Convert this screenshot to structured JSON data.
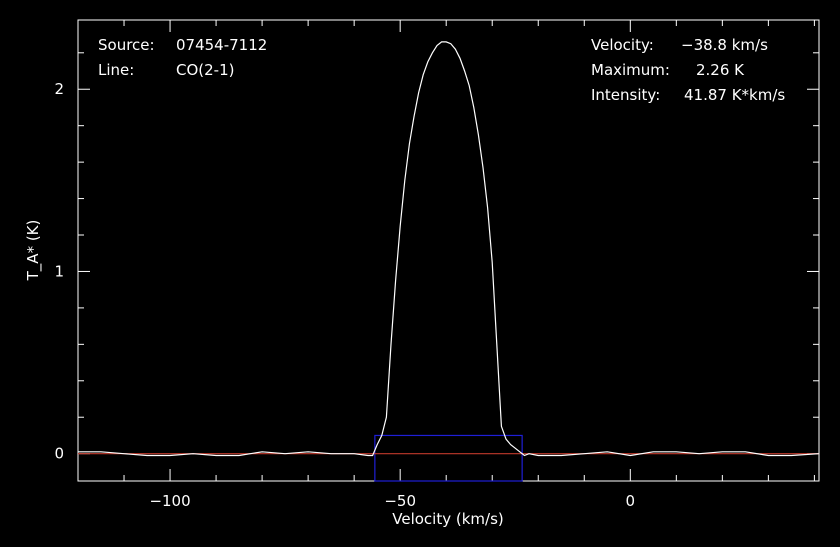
{
  "info": {
    "source_label": "Source:",
    "source_value": "07454-7112",
    "line_label": "Line:",
    "line_value": "CO(2-1)",
    "velocity_label": "Velocity:",
    "velocity_value": "−38.8 km/s",
    "maximum_label": "Maximum:",
    "maximum_value": "2.26 K",
    "intensity_label": "Intensity:",
    "intensity_value": "41.87 K*km/s"
  },
  "chart_data": {
    "type": "line",
    "xlabel": "Velocity (km/s)",
    "ylabel": "T_A* (K)",
    "xlim": [
      -120,
      41
    ],
    "ylim": [
      -0.15,
      2.38
    ],
    "x_ticks": [
      -100,
      -50,
      0
    ],
    "x_tick_labels": [
      "−100",
      "−50",
      "0"
    ],
    "y_ticks": [
      0,
      1,
      2
    ],
    "y_tick_labels": [
      "0",
      "1",
      "2"
    ],
    "colors": {
      "spectrum": "#ffffff",
      "baseline": "#c0392b",
      "window": "#1f1fd6",
      "background": "#000000"
    },
    "baseline_value": 0,
    "integration_window": {
      "x_min": -55.5,
      "x_max": -23.5,
      "y_top": 0.1
    },
    "series": [
      {
        "x": [
          -120,
          -115,
          -110,
          -105,
          -100,
          -95,
          -90,
          -85,
          -80,
          -75,
          -70,
          -65,
          -60,
          -57,
          -56,
          -55,
          -54,
          -53,
          -52,
          -51,
          -50,
          -49,
          -48,
          -47,
          -46,
          -45,
          -44,
          -43,
          -42,
          -41,
          -40,
          -39,
          -38,
          -37,
          -36,
          -35,
          -34,
          -33,
          -32,
          -31,
          -30,
          -29,
          -28,
          -27,
          -26,
          -25,
          -24,
          -23,
          -22,
          -20,
          -15,
          -10,
          -5,
          0,
          5,
          10,
          15,
          20,
          25,
          30,
          35,
          41
        ],
        "y": [
          0.01,
          0.01,
          0.0,
          -0.01,
          -0.01,
          0.0,
          -0.01,
          -0.01,
          0.01,
          0.0,
          0.01,
          0.0,
          0.0,
          -0.01,
          -0.01,
          0.05,
          0.1,
          0.2,
          0.6,
          0.95,
          1.25,
          1.5,
          1.7,
          1.85,
          1.98,
          2.08,
          2.15,
          2.2,
          2.24,
          2.26,
          2.26,
          2.25,
          2.22,
          2.17,
          2.1,
          2.02,
          1.9,
          1.75,
          1.57,
          1.35,
          1.05,
          0.6,
          0.15,
          0.08,
          0.05,
          0.03,
          0.01,
          -0.01,
          0.0,
          -0.01,
          -0.01,
          0.0,
          0.01,
          -0.01,
          0.01,
          0.01,
          0.0,
          0.01,
          0.01,
          -0.01,
          -0.01,
          0.0
        ]
      }
    ]
  }
}
